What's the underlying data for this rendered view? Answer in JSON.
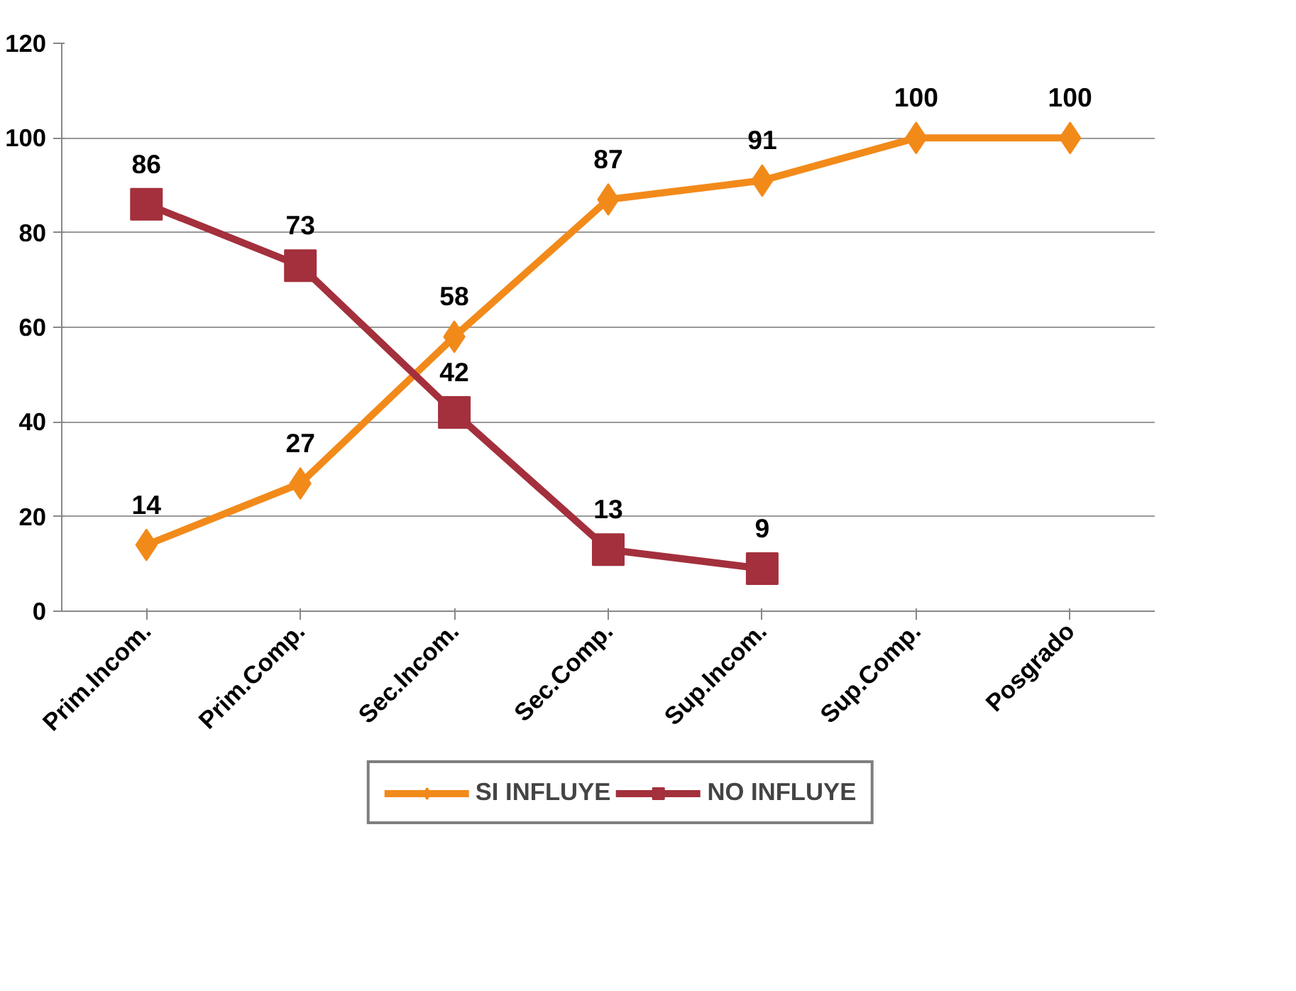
{
  "chart_data": {
    "type": "line",
    "categories": [
      "Prim.Incom.",
      "Prim.Comp.",
      "Sec.Incom.",
      "Sec.Comp.",
      "Sup.Incom.",
      "Sup.Comp.",
      "Posgrado"
    ],
    "series": [
      {
        "name": "SI INFLUYE",
        "color": "#f28a1a",
        "marker": "diamond",
        "values": [
          14,
          27,
          58,
          87,
          91,
          100,
          100
        ]
      },
      {
        "name": "NO INFLUYE",
        "color": "#a3303c",
        "marker": "square",
        "values": [
          86,
          73,
          42,
          13,
          9,
          null,
          null
        ]
      }
    ],
    "ylim": [
      0,
      120
    ],
    "yticks": [
      0,
      20,
      40,
      60,
      80,
      100,
      120
    ],
    "grid": "y",
    "legend": "bottom",
    "data_labels": true
  }
}
